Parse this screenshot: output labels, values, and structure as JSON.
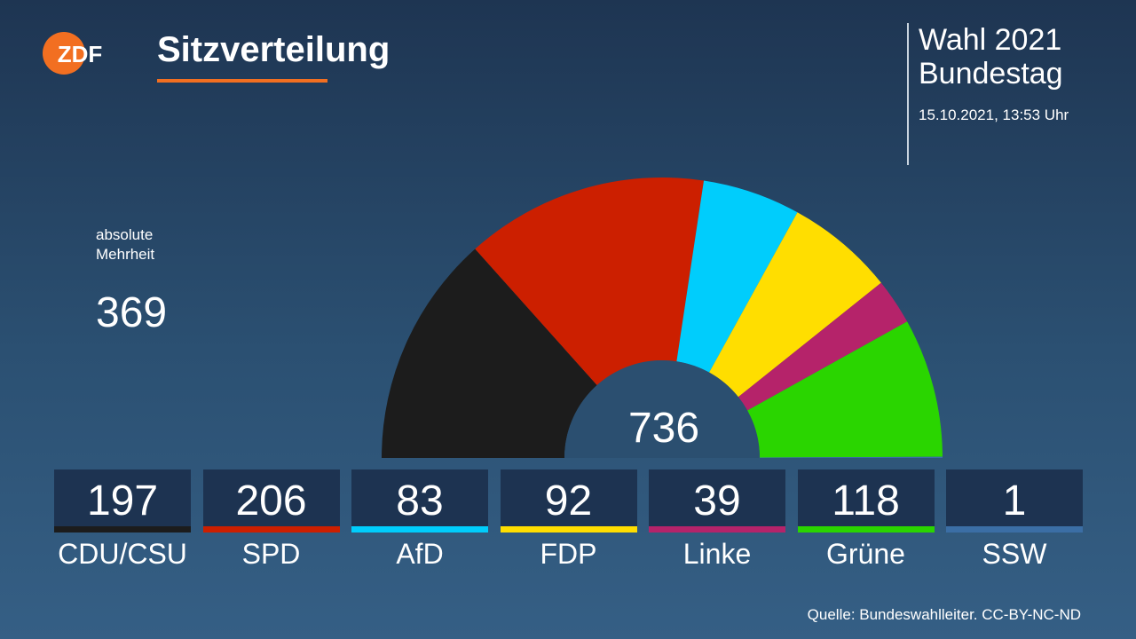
{
  "header": {
    "title": "Sitzverteilung",
    "logo_text": "ZDF"
  },
  "election": {
    "name": "Wahl 2021",
    "body": "Bundestag",
    "date": "15.10.2021, 13:53 Uhr"
  },
  "majority": {
    "label_line1": "absolute",
    "label_line2": "Mehrheit",
    "value": "369"
  },
  "total_seats": "736",
  "source": "Quelle: Bundeswahlleiter. CC-BY-NC-ND",
  "colors": {
    "accent": "#f26f21",
    "box_background": "#1d3351"
  },
  "chart_data": {
    "type": "hemicycle",
    "total": 736,
    "majority": 369,
    "categories": [
      "CDU/CSU",
      "SPD",
      "AfD",
      "FDP",
      "Linke",
      "Grüne",
      "SSW"
    ],
    "values": [
      197,
      206,
      83,
      92,
      39,
      118,
      1
    ],
    "colors": [
      "#1c1c1c",
      "#cc1f00",
      "#00cdfc",
      "#ffde00",
      "#b5236a",
      "#2ad500",
      "#3b6ea5"
    ]
  }
}
